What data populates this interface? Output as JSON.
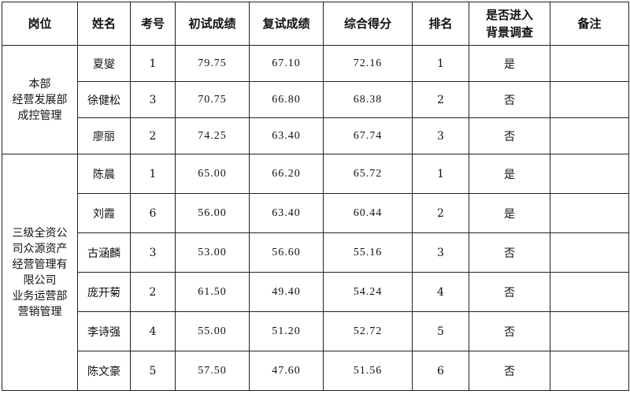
{
  "headers": [
    "岗位",
    "姓名",
    "考号",
    "初试成绩",
    "复试成绩",
    "综合得分",
    "排名",
    "是否进入背景调查",
    "备注"
  ],
  "groups": [
    {
      "position": "本部\n经营发展部\n成控管理",
      "rows": [
        {
          "name": "夏燮",
          "id": "1",
          "first": "79.75",
          "second": "67.10",
          "total": "72.16",
          "rank": "1",
          "bg": "是",
          "note": ""
        },
        {
          "name": "徐健松",
          "id": "3",
          "first": "70.75",
          "second": "66.80",
          "total": "68.38",
          "rank": "2",
          "bg": "否",
          "note": ""
        },
        {
          "name": "廖丽",
          "id": "2",
          "first": "74.25",
          "second": "63.40",
          "total": "67.74",
          "rank": "3",
          "bg": "否",
          "note": ""
        }
      ]
    },
    {
      "position": "三级全资公\n司众源资产\n经营管理有\n限公司\n业务运营部\n营销管理",
      "rows": [
        {
          "name": "陈晨",
          "id": "1",
          "first": "65.00",
          "second": "66.20",
          "total": "65.72",
          "rank": "1",
          "bg": "是",
          "note": ""
        },
        {
          "name": "刘霞",
          "id": "6",
          "first": "56.00",
          "second": "63.40",
          "total": "60.44",
          "rank": "2",
          "bg": "是",
          "note": ""
        },
        {
          "name": "古涵麟",
          "id": "3",
          "first": "53.00",
          "second": "56.60",
          "total": "55.16",
          "rank": "3",
          "bg": "否",
          "note": ""
        },
        {
          "name": "庞开菊",
          "id": "2",
          "first": "61.50",
          "second": "49.40",
          "total": "54.24",
          "rank": "4",
          "bg": "否",
          "note": ""
        },
        {
          "name": "李诗强",
          "id": "4",
          "first": "55.00",
          "second": "51.20",
          "total": "52.72",
          "rank": "5",
          "bg": "否",
          "note": ""
        },
        {
          "name": "陈文豪",
          "id": "5",
          "first": "57.50",
          "second": "47.60",
          "total": "51.56",
          "rank": "6",
          "bg": "否",
          "note": ""
        }
      ]
    }
  ]
}
